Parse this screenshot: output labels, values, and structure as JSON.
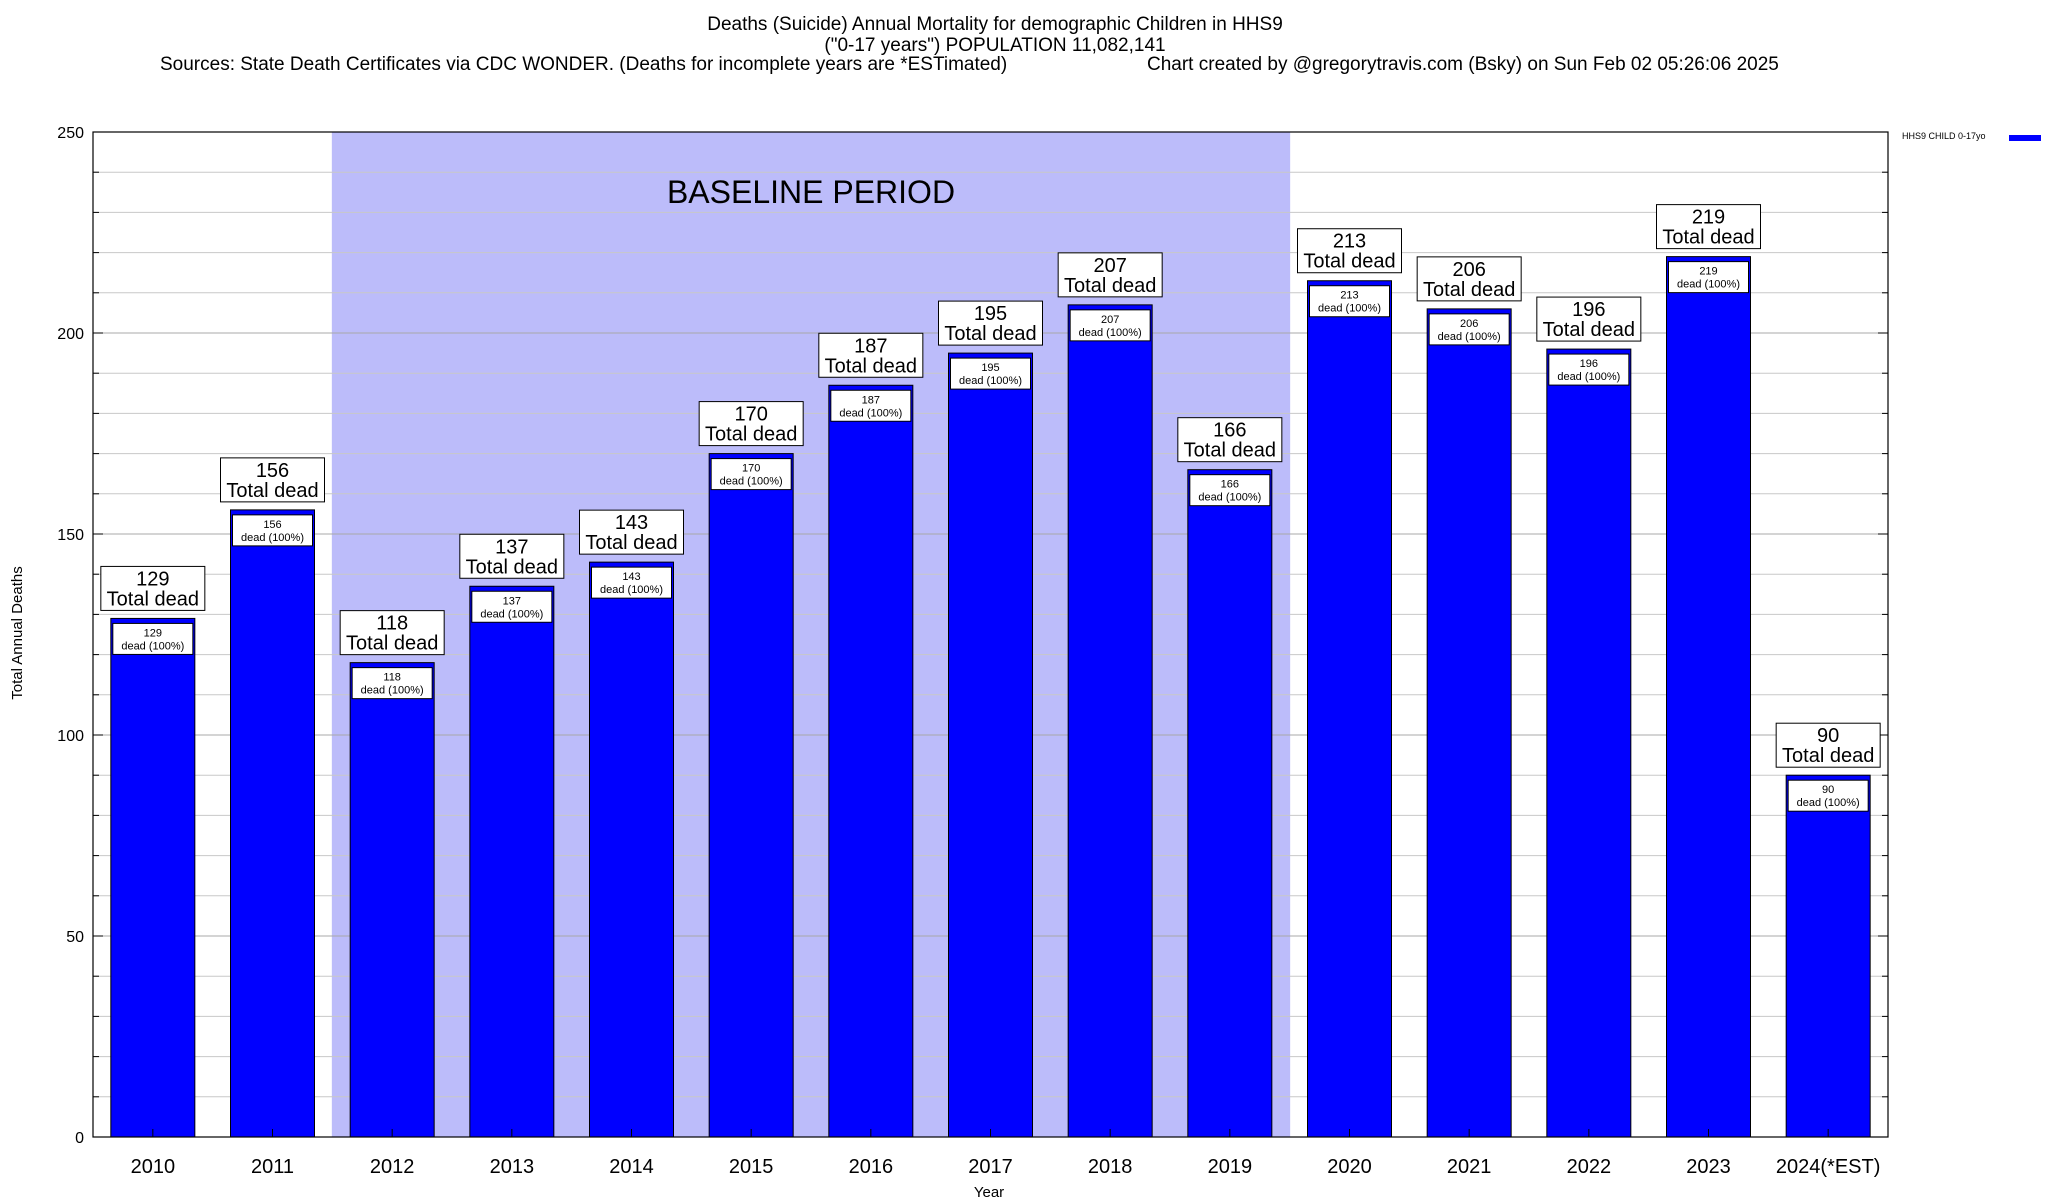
{
  "chart_data": {
    "type": "bar",
    "title_lines": [
      "Deaths (Suicide) Annual Mortality for demographic Children in HHS9",
      "(\"0-17 years\") POPULATION 11,082,141"
    ],
    "sources": "Sources: State Death Certificates via CDC WONDER. (Deaths for incomplete years are *ESTimated)",
    "credit": "Chart created by @gregorytravis.com (Bsky) on Sun Feb 02 05:26:06 2025",
    "xlabel": "Year",
    "ylabel": "Total Annual Deaths",
    "ylim": [
      0,
      250
    ],
    "yticks": [
      0,
      50,
      100,
      150,
      200,
      250
    ],
    "grid": true,
    "categories": [
      "2010",
      "2011",
      "2012",
      "2013",
      "2014",
      "2015",
      "2016",
      "2017",
      "2018",
      "2019",
      "2020",
      "2021",
      "2022",
      "2023",
      "2024(*EST)"
    ],
    "series": [
      {
        "name": "HHS9 CHILD 0-17yo",
        "color": "#0000ff",
        "values": [
          129,
          156,
          118,
          137,
          143,
          170,
          187,
          195,
          207,
          166,
          213,
          206,
          196,
          219,
          90
        ]
      }
    ],
    "total_label": "Total dead",
    "inner_label": "dead (100%)",
    "shaded_region": {
      "label": "BASELINE PERIOD",
      "from": "2012",
      "to": "2019",
      "color": "#bcbcfa"
    },
    "legend_position": "top-right"
  }
}
